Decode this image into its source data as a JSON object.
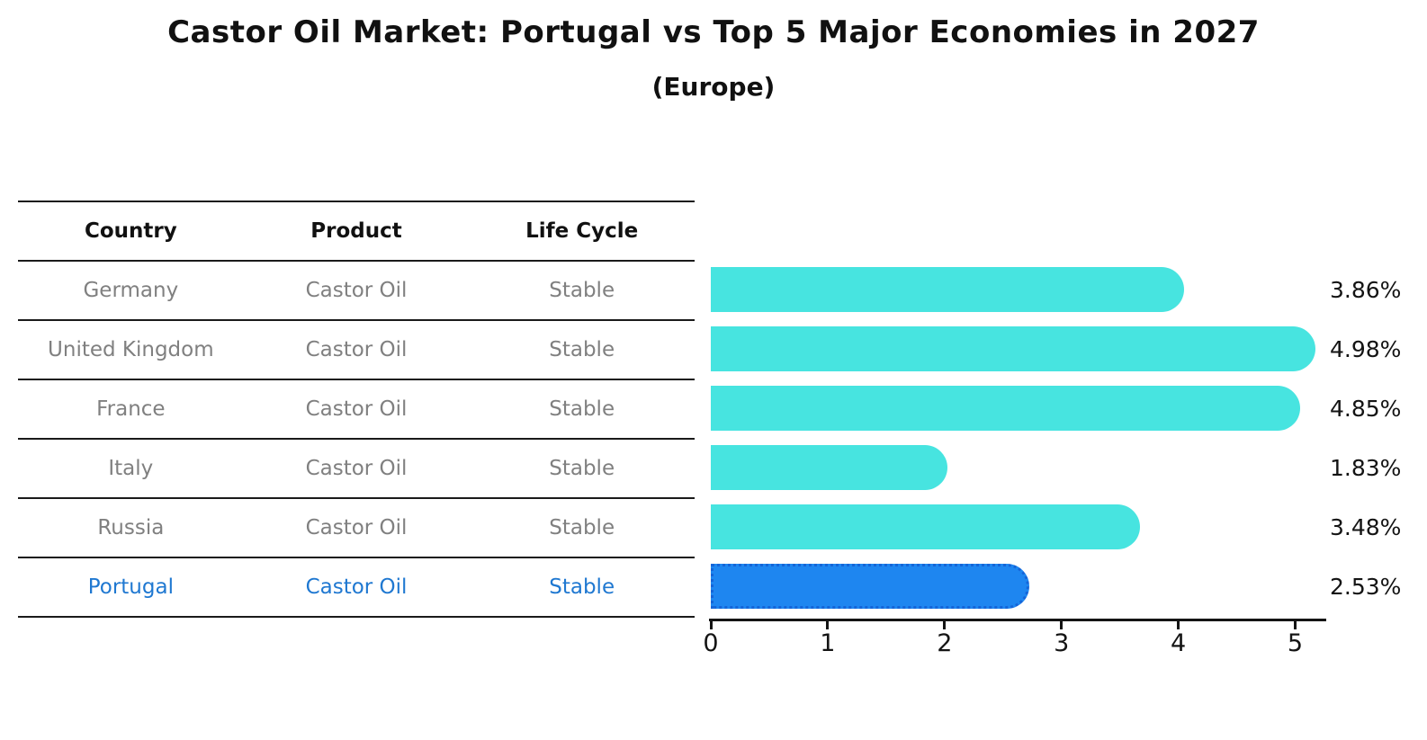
{
  "title": "Castor Oil Market: Portugal vs Top 5 Major Economies in 2027",
  "subtitle": "(Europe)",
  "table": {
    "headers": [
      "Country",
      "Product",
      "Life Cycle"
    ],
    "rows": [
      {
        "country": "Germany",
        "product": "Castor Oil",
        "life_cycle": "Stable",
        "highlight": false
      },
      {
        "country": "United Kingdom",
        "product": "Castor Oil",
        "life_cycle": "Stable",
        "highlight": false
      },
      {
        "country": "France",
        "product": "Castor Oil",
        "life_cycle": "Stable",
        "highlight": false
      },
      {
        "country": "Italy",
        "product": "Castor Oil",
        "life_cycle": "Stable",
        "highlight": false
      },
      {
        "country": "Russia",
        "product": "Castor Oil",
        "life_cycle": "Stable",
        "highlight": false
      },
      {
        "country": "Portugal",
        "product": "Castor Oil",
        "life_cycle": "Stable",
        "highlight": true
      }
    ]
  },
  "chart_data": {
    "type": "bar",
    "orientation": "horizontal",
    "title": "Castor Oil Market: Portugal vs Top 5 Major Economies in 2027",
    "subtitle": "(Europe)",
    "categories": [
      "Germany",
      "United Kingdom",
      "France",
      "Italy",
      "Russia",
      "Portugal"
    ],
    "values": [
      3.86,
      4.98,
      4.85,
      1.83,
      3.48,
      2.53
    ],
    "value_labels": [
      "3.86%",
      "4.98%",
      "4.85%",
      "1.83%",
      "3.48%",
      "2.53%"
    ],
    "unit": "%",
    "x_ticks": [
      "0",
      "1",
      "2",
      "3",
      "4",
      "5"
    ],
    "xlim": [
      0,
      5.25
    ],
    "grid": false,
    "legend": false,
    "highlight_index": 5,
    "bar_color": "#47e4e0",
    "highlight_bar_color": "#1e86f0",
    "highlight_border_color": "#1565d8"
  },
  "colors": {
    "bar_cyan": "#47e4e0",
    "bar_blue": "#1e86f0",
    "highlight_text": "#1f78d1",
    "row_text": "#808080",
    "header_text": "#111111",
    "axis": "#141414"
  }
}
